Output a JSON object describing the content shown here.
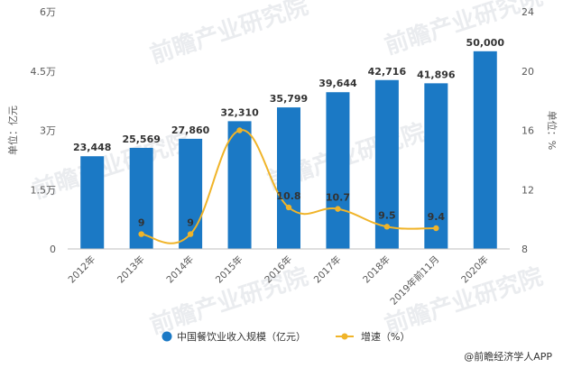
{
  "chart_data": {
    "type": "bar+line",
    "categories": [
      "2012年",
      "2013年",
      "2014年",
      "2015年",
      "2016年",
      "2017年",
      "2018年",
      "2019年前11月",
      "2020年"
    ],
    "series": [
      {
        "name": "中国餐饮业收入规模（亿元）",
        "type": "bar",
        "axis": "left",
        "color": "#1b79c5",
        "values": [
          23448,
          25569,
          27860,
          32310,
          35799,
          39644,
          42716,
          41896,
          50000
        ],
        "labels": [
          "23,448",
          "25,569",
          "27,860",
          "32,310",
          "35,799",
          "39,644",
          "42,716",
          "41,896",
          "50,000"
        ]
      },
      {
        "name": "增速（%）",
        "type": "line",
        "axis": "right",
        "color": "#f0b429",
        "values": [
          null,
          9,
          9,
          16,
          10.8,
          10.7,
          9.5,
          9.4,
          null
        ],
        "labels": [
          "",
          "9",
          "9",
          "",
          "10.8",
          "10.7",
          "9.5",
          "9.4",
          ""
        ]
      }
    ],
    "y_left": {
      "label": "单位：亿元",
      "ylim": [
        0,
        60000
      ],
      "ticks": [
        0,
        15000,
        30000,
        45000,
        60000
      ],
      "tick_labels": [
        "0",
        "1.5万",
        "3万",
        "4.5万",
        "6万"
      ]
    },
    "y_right": {
      "label": "单位：%",
      "ylim": [
        8,
        24
      ],
      "ticks": [
        8,
        12,
        16,
        20,
        24
      ],
      "tick_labels": [
        "8",
        "12",
        "16",
        "20",
        "24"
      ]
    },
    "grid": false,
    "legend_position": "bottom"
  },
  "credit": "@前瞻经济学人APP",
  "watermark": "前瞻产业研究院"
}
